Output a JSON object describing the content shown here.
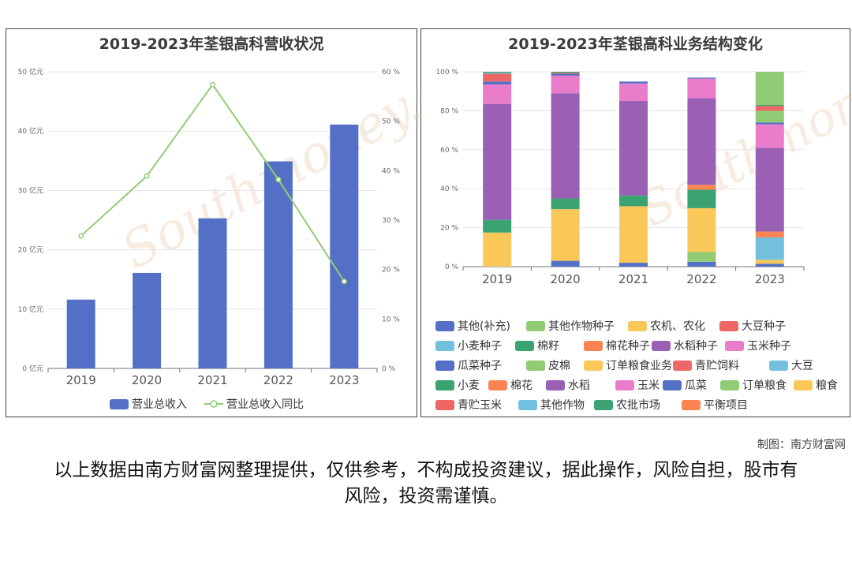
{
  "chart_data": [
    {
      "type": "bar",
      "title": "2019-2023年荃银高科营收状况",
      "categories": [
        "2019",
        "2020",
        "2021",
        "2022",
        "2023"
      ],
      "y_left": {
        "ticks": [
          "0 亿元",
          "10 亿元",
          "20 亿元",
          "30 亿元",
          "40 亿元",
          "50 亿元"
        ],
        "ylim": [
          0,
          50
        ]
      },
      "y_right": {
        "ticks": [
          "0 %",
          "10 %",
          "20 %",
          "30 %",
          "40 %",
          "50 %",
          "60 %"
        ],
        "ylim": [
          0,
          60
        ]
      },
      "series": [
        {
          "name": "营业总收入",
          "type": "bar",
          "axis": "left",
          "color": "#5470c6",
          "values": [
            11.6,
            16.1,
            25.3,
            34.9,
            41.1
          ]
        },
        {
          "name": "营业总收入同比",
          "type": "line",
          "axis": "right",
          "color": "#91cc75",
          "values": [
            26.8,
            38.9,
            57.4,
            38.2,
            17.6
          ]
        }
      ],
      "legend_position": "bottom"
    },
    {
      "type": "bar",
      "stacked": true,
      "title": "2019-2023年荃银高科业务结构变化",
      "categories": [
        "2019",
        "2020",
        "2021",
        "2022",
        "2023"
      ],
      "y_ticks": [
        "0 %",
        "20 %",
        "40 %",
        "60 %",
        "80 %",
        "100 %"
      ],
      "ylim": [
        0,
        100
      ],
      "series": [
        {
          "name": "其他(补充)",
          "color": "#5470c6",
          "values": [
            0,
            3,
            2,
            2.5,
            1.5
          ]
        },
        {
          "name": "其他作物种子",
          "color": "#91cc75",
          "values": [
            0,
            0,
            0,
            5,
            0
          ]
        },
        {
          "name": "农机、农化",
          "color": "#fac858",
          "values": [
            17.5,
            26.5,
            29,
            22.5,
            2
          ]
        },
        {
          "name": "大豆种子",
          "color": "#ee6666",
          "values": [
            0,
            0,
            0,
            0,
            0
          ]
        },
        {
          "name": "小麦种子",
          "color": "#73c0de",
          "values": [
            0,
            0,
            0,
            0,
            11.5
          ]
        },
        {
          "name": "棉籽",
          "color": "#3ba272",
          "values": [
            6.5,
            5.5,
            5.5,
            9.5,
            0
          ]
        },
        {
          "name": "棉花种子",
          "color": "#fc8452",
          "values": [
            0,
            0,
            0,
            2.5,
            3
          ]
        },
        {
          "name": "水稻种子",
          "color": "#9a60b4",
          "values": [
            59.5,
            54,
            48.5,
            44.5,
            43
          ]
        },
        {
          "name": "玉米种子",
          "color": "#ea7ccc",
          "values": [
            10,
            9,
            9,
            10,
            12
          ]
        },
        {
          "name": "瓜菜种子",
          "color": "#5470c6",
          "values": [
            1.5,
            1,
            1,
            0.5,
            1
          ]
        },
        {
          "name": "皮棉",
          "color": "#91cc75",
          "values": [
            0,
            0,
            0,
            0,
            6
          ]
        },
        {
          "name": "订单粮食业务",
          "color": "#fac858",
          "values": [
            0,
            0,
            0,
            0,
            0
          ]
        },
        {
          "name": "青贮饲料",
          "color": "#ee6666",
          "values": [
            4,
            0.5,
            0,
            0,
            2.5
          ]
        },
        {
          "name": "大豆",
          "color": "#73c0de",
          "values": [
            0.5,
            0,
            0,
            0,
            0
          ]
        },
        {
          "name": "小麦",
          "color": "#3ba272",
          "values": [
            0.5,
            0.5,
            0,
            0,
            0.5
          ]
        },
        {
          "name": "棉花",
          "color": "#fc8452",
          "values": [
            0,
            0,
            0,
            0,
            0
          ]
        },
        {
          "name": "水稻",
          "color": "#9a60b4",
          "values": [
            0,
            0,
            0,
            0,
            0
          ]
        },
        {
          "name": "玉米",
          "color": "#ea7ccc",
          "values": [
            0,
            0,
            0,
            0,
            0
          ]
        },
        {
          "name": "瓜菜",
          "color": "#5470c6",
          "values": [
            0,
            0,
            0,
            0,
            0
          ]
        },
        {
          "name": "订单粮食",
          "color": "#91cc75",
          "values": [
            0,
            0,
            0,
            0,
            17
          ]
        },
        {
          "name": "粮食",
          "color": "#fac858",
          "values": [
            0,
            0,
            0,
            0,
            0
          ]
        },
        {
          "name": "青贮玉米",
          "color": "#ee6666",
          "values": [
            0,
            0,
            0,
            0,
            0
          ]
        },
        {
          "name": "其他作物",
          "color": "#73c0de",
          "values": [
            0,
            0,
            0,
            0,
            0
          ]
        },
        {
          "name": "农批市场",
          "color": "#3ba272",
          "values": [
            0,
            0,
            0,
            0,
            0
          ]
        },
        {
          "name": "平衡项目",
          "color": "#fc8452",
          "values": [
            0,
            0,
            0,
            0,
            0
          ]
        }
      ],
      "legend_position": "bottom"
    }
  ],
  "footer": {
    "credit": "制图：南方财富网",
    "disclaimer": "以上数据由南方财富网整理提供，仅供参考，不构成投资建议，据此操作，风险自担，股市有风险，投资需谨慎。"
  }
}
